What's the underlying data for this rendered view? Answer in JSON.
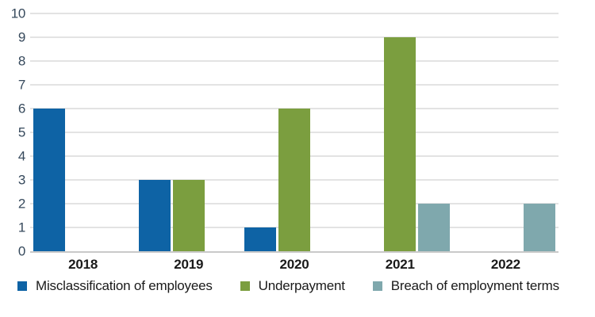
{
  "app": {
    "background": "#ffffff"
  },
  "chart_data": {
    "type": "bar",
    "title": "",
    "xlabel": "",
    "ylabel": "",
    "categories": [
      "2018",
      "2019",
      "2020",
      "2021",
      "2022"
    ],
    "series": [
      {
        "key": "misclassification",
        "name": "Misclassification of employees",
        "color": "#0e63a5",
        "values": [
          6,
          3,
          1,
          0,
          0
        ]
      },
      {
        "key": "underpayment",
        "name": "Underpayment",
        "color": "#7b9e3f",
        "values": [
          0,
          3,
          6,
          9,
          0
        ]
      },
      {
        "key": "breach",
        "name": "Breach of employment terms",
        "color": "#7fa8ad",
        "values": [
          0,
          0,
          0,
          2,
          2
        ]
      }
    ],
    "ylim": [
      0,
      10
    ],
    "yticks": [
      0,
      1,
      2,
      3,
      4,
      5,
      6,
      7,
      8,
      9,
      10
    ],
    "grid": "horizontal",
    "legend_position": "bottom-left",
    "styles": {
      "gridline_color": "#e3e3e3",
      "baseline_color": "#c9c9c9",
      "ytick_label_color": "#36495c",
      "xtick_label_color": "#1a1a1a",
      "legend_text_color": "#1a1a1a"
    }
  }
}
